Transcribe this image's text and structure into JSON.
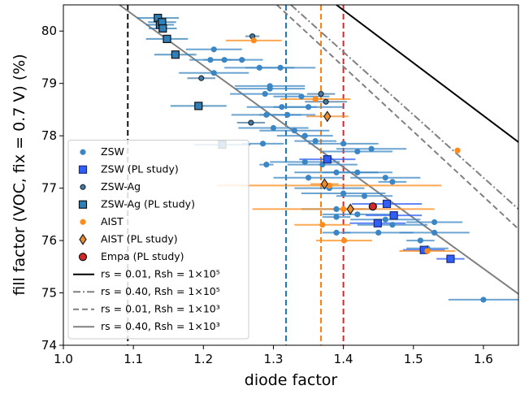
{
  "chart_data": {
    "type": "scatter",
    "xlabel": "diode factor",
    "ylabel": "fill factor (VOC, fix = 0.7 V) (%)",
    "xlim": [
      1.0,
      1.65
    ],
    "ylim": [
      74,
      80.5
    ],
    "xticks": [
      {
        "value": 1.0,
        "label": "1.0"
      },
      1.1,
      1.2,
      1.3,
      1.4,
      1.5,
      1.6
    ],
    "yticks": [
      74,
      75,
      76,
      77,
      78,
      79,
      80
    ],
    "legend": "lower left",
    "vlines": [
      {
        "x": 1.092,
        "color": "#111111"
      },
      {
        "x": 1.318,
        "color": "#1f77b4"
      },
      {
        "x": 1.368,
        "color": "#ff7f0e"
      },
      {
        "x": 1.4,
        "color": "#d62728"
      }
    ],
    "series": [
      {
        "name": "ZSW",
        "marker": "dot",
        "color": "#3b86c4",
        "edgecolor": "#3b86c4",
        "x": [
          1.215,
          1.21,
          1.23,
          1.255,
          1.215,
          1.28,
          1.31,
          1.295,
          1.295,
          1.288,
          1.34,
          1.312,
          1.35,
          1.29,
          1.32,
          1.3,
          1.33,
          1.345,
          1.36,
          1.285,
          1.29,
          1.4,
          1.42,
          1.44,
          1.345,
          1.37,
          1.39,
          1.42,
          1.46,
          1.47,
          1.35,
          1.38,
          1.4,
          1.43,
          1.39,
          1.42,
          1.46,
          1.39,
          1.47,
          1.53,
          1.39,
          1.45,
          1.53,
          1.51,
          1.6,
          1.52
        ],
        "values": [
          79.65,
          79.45,
          79.45,
          79.45,
          79.2,
          79.3,
          79.3,
          78.95,
          78.9,
          78.8,
          78.75,
          78.55,
          78.55,
          78.4,
          78.4,
          78.15,
          78.1,
          78.0,
          77.9,
          77.85,
          77.45,
          77.85,
          77.7,
          77.75,
          77.5,
          77.45,
          77.3,
          77.3,
          77.2,
          77.12,
          77.2,
          77.0,
          76.9,
          76.85,
          76.6,
          76.5,
          76.4,
          76.45,
          76.3,
          76.35,
          76.15,
          76.15,
          76.15,
          76.0,
          74.87,
          75.85
        ],
        "xerr": [
          0.04,
          0.03,
          0.03,
          0.03,
          0.05,
          0.05,
          0.05,
          0.05,
          0.05,
          0.05,
          0.04,
          0.05,
          0.05,
          0.05,
          0.04,
          0.05,
          0.05,
          0.04,
          0.03,
          0.03,
          0.01,
          0.05,
          0.05,
          0.05,
          0.05,
          0.05,
          0.06,
          0.05,
          0.05,
          0.02,
          0.05,
          0.05,
          0.06,
          0.04,
          0.05,
          0.05,
          0.05,
          0.02,
          0.05,
          0.04,
          0.02,
          0.05,
          0.05,
          0.02,
          0.05,
          0.03
        ]
      },
      {
        "name": "ZSW (PL study)",
        "marker": "square",
        "color": "#2f5ff5",
        "edgecolor": "#1a2a80",
        "x": [
          1.377,
          1.462,
          1.472,
          1.449,
          1.515,
          1.553
        ],
        "values": [
          77.55,
          76.7,
          76.48,
          76.33,
          75.82,
          75.65
        ],
        "xerr": [
          0.04,
          0.05,
          0.04,
          0.04,
          0.03,
          0.02
        ]
      },
      {
        "name": "ZSW-Ag",
        "marker": "dot",
        "color": "#4a7aa0",
        "edgecolor": "#1a2a3a",
        "x": [
          1.27,
          1.197,
          1.268,
          1.368,
          1.375
        ],
        "values": [
          79.9,
          79.1,
          78.25,
          78.8,
          78.65
        ],
        "xerr": [
          0.01,
          0.02,
          0.02,
          0.02,
          0.03
        ]
      },
      {
        "name": "ZSW-Ag (PL study)",
        "marker": "square",
        "color": "#2f7fb8",
        "edgecolor": "#111111",
        "x": [
          1.135,
          1.138,
          1.141,
          1.142,
          1.148,
          1.16,
          1.193,
          1.227
        ],
        "values": [
          80.25,
          80.12,
          80.17,
          80.05,
          79.85,
          79.55,
          78.57,
          77.83
        ],
        "xerr": [
          0.03,
          0.02,
          0.02,
          0.02,
          0.03,
          0.03,
          0.04,
          0.04
        ]
      },
      {
        "name": "AIST",
        "marker": "dot",
        "color": "#ff8c1a",
        "edgecolor": "#ff8c1a",
        "x": [
          1.272,
          1.36,
          1.563,
          1.38,
          1.4,
          1.37,
          1.401,
          1.52
        ],
        "values": [
          79.82,
          78.7,
          77.72,
          77.05,
          76.6,
          76.3,
          76.0,
          75.8
        ],
        "xerr": [
          0.04,
          0.05,
          0.0,
          0.16,
          0.13,
          0.04,
          0.04,
          0.04
        ]
      },
      {
        "name": "AIST (PL study)",
        "marker": "diamond",
        "color": "#f08c2a",
        "edgecolor": "#222222",
        "x": [
          1.377,
          1.373,
          1.41
        ],
        "values": [
          78.37,
          77.08,
          76.6
        ],
        "xerr": [
          0.03,
          0.02,
          0.02
        ]
      },
      {
        "name": "Empa (PL study)",
        "marker": "circle",
        "color": "#d62728",
        "edgecolor": "#111111",
        "x": [
          1.442
        ],
        "values": [
          76.65
        ],
        "xerr": [
          0.0
        ]
      }
    ],
    "lines": [
      {
        "name": "rs = 0.01, Rsh = 1×10⁵",
        "color": "#000000",
        "dash": "solid",
        "x": [
          1.39,
          1.65
        ],
        "values": [
          80.5,
          77.88
        ]
      },
      {
        "name": "rs = 0.40, Rsh = 1×10⁵",
        "color": "#808080",
        "dash": "dashdot",
        "x": [
          1.325,
          1.65
        ],
        "values": [
          80.5,
          76.6
        ]
      },
      {
        "name": "rs = 0.01, Rsh = 1×10³",
        "color": "#808080",
        "dash": "dashed",
        "x": [
          1.305,
          1.65
        ],
        "values": [
          80.5,
          76.22
        ]
      },
      {
        "name": "rs = 0.40, Rsh = 1×10³",
        "color": "#808080",
        "dash": "solid",
        "x": [
          1.08,
          1.65
        ],
        "values": [
          80.5,
          74.98
        ]
      }
    ]
  }
}
